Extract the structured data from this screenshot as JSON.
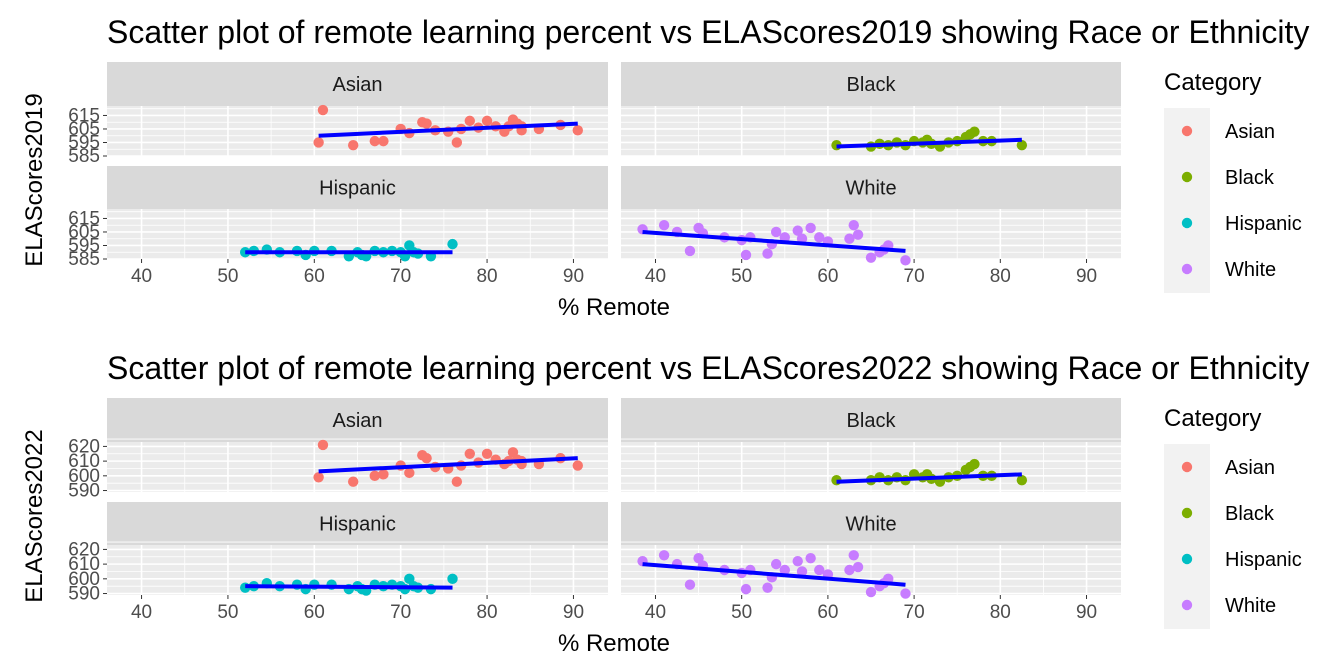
{
  "colors": {
    "Asian": "#F8766D",
    "Black": "#7CAE00",
    "Hispanic": "#00BFC4",
    "White": "#C77CFF",
    "trend": "#0000FF",
    "panel_bg": "#EBEBEB",
    "strip_bg": "#D9D9D9",
    "grid": "#FFFFFF"
  },
  "legend": {
    "title": "Category",
    "items": [
      "Asian",
      "Black",
      "Hispanic",
      "White"
    ]
  },
  "chart_data": [
    {
      "type": "scatter",
      "title": "Scatter plot of remote learning percent vs ELAScores2019 showing Race or Ethnicity",
      "xlabel": "% Remote",
      "ylabel": "ELAScores2019",
      "xlim": [
        36,
        94
      ],
      "ylim": [
        585,
        622
      ],
      "xticks": [
        "40",
        "50",
        "60",
        "70",
        "80",
        "90"
      ],
      "yticks": [
        "585",
        "595",
        "605",
        "615"
      ],
      "yticks_visible": [
        "585",
        "595",
        "605",
        "615"
      ],
      "facets": [
        {
          "name": "Asian",
          "points": [
            [
              61,
              619
            ],
            [
              60.5,
              595
            ],
            [
              64.5,
              593
            ],
            [
              67,
              596
            ],
            [
              68,
              596
            ],
            [
              70,
              605
            ],
            [
              71,
              602
            ],
            [
              72.5,
              610
            ],
            [
              73,
              609
            ],
            [
              74,
              604
            ],
            [
              75.5,
              603
            ],
            [
              76.5,
              595
            ],
            [
              77,
              605
            ],
            [
              78,
              611
            ],
            [
              79,
              606
            ],
            [
              80,
              611
            ],
            [
              81,
              607
            ],
            [
              82,
              603
            ],
            [
              82.5,
              607
            ],
            [
              83,
              612
            ],
            [
              83.5,
              609
            ],
            [
              84,
              604
            ],
            [
              84,
              607
            ],
            [
              86,
              605
            ],
            [
              88.5,
              608
            ],
            [
              90.5,
              604
            ]
          ],
          "trend": [
            [
              60.5,
              600
            ],
            [
              90.5,
              609
            ]
          ]
        },
        {
          "name": "Black",
          "points": [
            [
              61,
              593
            ],
            [
              65,
              592
            ],
            [
              66,
              594
            ],
            [
              67,
              593
            ],
            [
              68,
              595
            ],
            [
              69,
              593
            ],
            [
              70,
              596
            ],
            [
              71,
              595
            ],
            [
              71.5,
              597
            ],
            [
              72,
              594
            ],
            [
              73,
              592
            ],
            [
              74,
              595
            ],
            [
              75,
              596
            ],
            [
              76,
              599
            ],
            [
              76.5,
              601
            ],
            [
              77,
              603
            ],
            [
              78,
              596
            ],
            [
              79,
              596
            ],
            [
              82.5,
              593
            ]
          ],
          "trend": [
            [
              61,
              592
            ],
            [
              82.5,
              597
            ]
          ]
        },
        {
          "name": "Hispanic",
          "points": [
            [
              52,
              590
            ],
            [
              53,
              591
            ],
            [
              54.5,
              592
            ],
            [
              56,
              590
            ],
            [
              58,
              591
            ],
            [
              59,
              588
            ],
            [
              60,
              591
            ],
            [
              62,
              591
            ],
            [
              64,
              587
            ],
            [
              65,
              590
            ],
            [
              65.5,
              588
            ],
            [
              66,
              587
            ],
            [
              67,
              591
            ],
            [
              68,
              590
            ],
            [
              69,
              591
            ],
            [
              70,
              590
            ],
            [
              70.5,
              587
            ],
            [
              71,
              595
            ],
            [
              71.5,
              590
            ],
            [
              72,
              589
            ],
            [
              73.5,
              587
            ],
            [
              76,
              596
            ]
          ],
          "trend": [
            [
              52,
              590
            ],
            [
              76,
              590
            ]
          ]
        },
        {
          "name": "White",
          "points": [
            [
              38.5,
              607
            ],
            [
              41,
              610
            ],
            [
              42.5,
              605
            ],
            [
              44,
              591
            ],
            [
              45,
              608
            ],
            [
              45.5,
              604
            ],
            [
              48,
              601
            ],
            [
              50,
              599
            ],
            [
              50.5,
              588
            ],
            [
              51,
              601
            ],
            [
              53,
              589
            ],
            [
              53.5,
              596
            ],
            [
              54,
              605
            ],
            [
              55,
              601
            ],
            [
              56.5,
              606
            ],
            [
              57,
              600
            ],
            [
              58,
              608
            ],
            [
              59,
              601
            ],
            [
              60,
              598
            ],
            [
              62.5,
              600
            ],
            [
              63,
              610
            ],
            [
              63.5,
              603
            ],
            [
              65,
              586
            ],
            [
              66,
              590
            ],
            [
              66.5,
              592
            ],
            [
              67,
              595
            ],
            [
              69,
              584
            ]
          ],
          "trend": [
            [
              38.5,
              605
            ],
            [
              69,
              591
            ]
          ]
        }
      ]
    },
    {
      "type": "scatter",
      "title": "Scatter plot of remote learning percent vs ELAScores2022 showing Race or Ethnicity",
      "xlabel": "% Remote",
      "ylabel": "ELAScores2022",
      "xlim": [
        36,
        94
      ],
      "ylim": [
        589,
        623
      ],
      "xticks": [
        "40",
        "50",
        "60",
        "70",
        "80",
        "90"
      ],
      "yticks": [
        "590",
        "600",
        "610",
        "620"
      ],
      "yticks_visible": [
        "590",
        "600",
        "610",
        "620"
      ],
      "facets": [
        {
          "name": "Asian",
          "points": [
            [
              61,
              621
            ],
            [
              60.5,
              599
            ],
            [
              64.5,
              596
            ],
            [
              67,
              600
            ],
            [
              68,
              601
            ],
            [
              70,
              607
            ],
            [
              71,
              602
            ],
            [
              72.5,
              614
            ],
            [
              73,
              612
            ],
            [
              74,
              606
            ],
            [
              75.5,
              605
            ],
            [
              76.5,
              596
            ],
            [
              77,
              607
            ],
            [
              78,
              615
            ],
            [
              79,
              609
            ],
            [
              80,
              615
            ],
            [
              81,
              611
            ],
            [
              82,
              608
            ],
            [
              82.5,
              610
            ],
            [
              83,
              616
            ],
            [
              83.5,
              611
            ],
            [
              84,
              608
            ],
            [
              84,
              610
            ],
            [
              86,
              608
            ],
            [
              88.5,
              612
            ],
            [
              90.5,
              607
            ]
          ],
          "trend": [
            [
              60.5,
              603
            ],
            [
              90.5,
              612
            ]
          ]
        },
        {
          "name": "Black",
          "points": [
            [
              61,
              597
            ],
            [
              65,
              597
            ],
            [
              66,
              599
            ],
            [
              67,
              597
            ],
            [
              68,
              599
            ],
            [
              69,
              597
            ],
            [
              70,
              601
            ],
            [
              71,
              599
            ],
            [
              71.5,
              601
            ],
            [
              72,
              598
            ],
            [
              73,
              596
            ],
            [
              74,
              599
            ],
            [
              75,
              600
            ],
            [
              76,
              604
            ],
            [
              76.5,
              606
            ],
            [
              77,
              608
            ],
            [
              78,
              600
            ],
            [
              79,
              600
            ],
            [
              82.5,
              597
            ]
          ],
          "trend": [
            [
              61,
              596
            ],
            [
              82.5,
              601
            ]
          ]
        },
        {
          "name": "Hispanic",
          "points": [
            [
              52,
              594
            ],
            [
              53,
              595
            ],
            [
              54.5,
              597
            ],
            [
              56,
              595
            ],
            [
              58,
              596
            ],
            [
              59,
              593
            ],
            [
              60,
              596
            ],
            [
              62,
              596
            ],
            [
              64,
              593
            ],
            [
              65,
              595
            ],
            [
              65.5,
              593
            ],
            [
              66,
              592
            ],
            [
              67,
              596
            ],
            [
              68,
              595
            ],
            [
              69,
              596
            ],
            [
              70,
              595
            ],
            [
              70.5,
              593
            ],
            [
              71,
              600
            ],
            [
              71.5,
              595
            ],
            [
              72,
              594
            ],
            [
              73.5,
              593
            ],
            [
              76,
              600
            ]
          ],
          "trend": [
            [
              52,
              595
            ],
            [
              76,
              594
            ]
          ]
        },
        {
          "name": "White",
          "points": [
            [
              38.5,
              612
            ],
            [
              41,
              616
            ],
            [
              42.5,
              610
            ],
            [
              44,
              596
            ],
            [
              45,
              614
            ],
            [
              45.5,
              609
            ],
            [
              48,
              606
            ],
            [
              50,
              604
            ],
            [
              50.5,
              593
            ],
            [
              51,
              606
            ],
            [
              53,
              594
            ],
            [
              53.5,
              601
            ],
            [
              54,
              610
            ],
            [
              55,
              606
            ],
            [
              56.5,
              612
            ],
            [
              57,
              605
            ],
            [
              58,
              614
            ],
            [
              59,
              606
            ],
            [
              60,
              603
            ],
            [
              62.5,
              606
            ],
            [
              63,
              616
            ],
            [
              63.5,
              608
            ],
            [
              65,
              591
            ],
            [
              66,
              595
            ],
            [
              66.5,
              597
            ],
            [
              67,
              600
            ],
            [
              69,
              590
            ]
          ],
          "trend": [
            [
              38.5,
              610
            ],
            [
              69,
              596
            ]
          ]
        }
      ]
    }
  ]
}
